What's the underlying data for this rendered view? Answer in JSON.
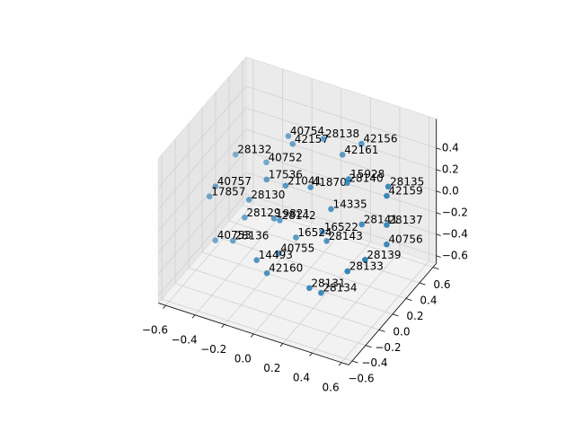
{
  "chart_data": {
    "type": "scatter3d",
    "color": "#1f77b4",
    "grid": true,
    "x": [
      -0.2,
      -0.17,
      0.04,
      0.3,
      0.17,
      -0.56,
      -0.35,
      -0.21,
      -0.08,
      0.09,
      0.35,
      0.34,
      0.62,
      0.61,
      -0.56,
      -0.6,
      -0.33,
      0.23,
      -0.36,
      -0.16,
      -0.12,
      0.44,
      0.61,
      0.17,
      -0.01,
      0.2,
      -0.56,
      -0.44,
      0.61,
      0.01,
      -0.14,
      0.6,
      -0.07,
      0.48,
      0.22,
      0.3
    ],
    "y": [
      0.3,
      0.3,
      0.3,
      0.3,
      0.3,
      0.3,
      0.3,
      0,
      0,
      0,
      0,
      0,
      0,
      0,
      0,
      0,
      0,
      0,
      0,
      0,
      0,
      0,
      0,
      0,
      0,
      0,
      0,
      0,
      0,
      -0.3,
      -0.3,
      -0.3,
      -0.3,
      -0.3,
      -0.3,
      -0.3
    ],
    "z": [
      0.39,
      0.33,
      0.47,
      0.54,
      0.38,
      0.06,
      0.08,
      0.2,
      0.2,
      0.26,
      0.45,
      0.41,
      0.5,
      0.41,
      -0.02,
      -0.13,
      -0.04,
      0.12,
      -0.22,
      -0.14,
      -0.14,
      0.07,
      0.14,
      -0.12,
      -0.25,
      -0.19,
      -0.52,
      -0.47,
      -0.04,
      -0.17,
      -0.3,
      0.03,
      -0.39,
      -0.13,
      -0.4,
      -0.41
    ],
    "labels": [
      "40754",
      "42157",
      "28138",
      "42156",
      "42161",
      "28132",
      "40752",
      "17536",
      "21041",
      "41870",
      "15928",
      "28140",
      "28135",
      "42159",
      "40757",
      "17857",
      "28130",
      "14335",
      "28129",
      "19821",
      "28142",
      "28141",
      "28137",
      "16522",
      "16524",
      "28143",
      "40753",
      "28136",
      "40756",
      "40755",
      "14493",
      "28139",
      "42160",
      "28133",
      "28131",
      "28134"
    ],
    "xlim": [
      -0.65,
      0.65
    ],
    "ylim": [
      -0.65,
      0.65
    ],
    "zlim": [
      -0.67,
      0.67
    ],
    "xticks": [
      {
        "value": -0.6,
        "label": "−0.6"
      },
      {
        "value": -0.4,
        "label": "−0.4"
      },
      {
        "value": -0.2,
        "label": "−0.2"
      },
      {
        "value": 0,
        "label": "0.0"
      },
      0.2,
      0.4,
      0.6
    ],
    "yticks": [
      {
        "value": -0.6,
        "label": "−0.6"
      },
      {
        "value": -0.4,
        "label": "−0.4"
      },
      {
        "value": -0.2,
        "label": "−0.2"
      },
      {
        "value": 0,
        "label": "0.0"
      },
      0.2,
      0.4,
      0.6
    ],
    "zticks": [
      {
        "value": -0.6,
        "label": "−0.6"
      },
      {
        "value": -0.4,
        "label": "−0.4"
      },
      {
        "value": -0.2,
        "label": "−0.2"
      },
      {
        "value": 0,
        "label": "0.0"
      },
      0.2,
      0.4
    ]
  }
}
